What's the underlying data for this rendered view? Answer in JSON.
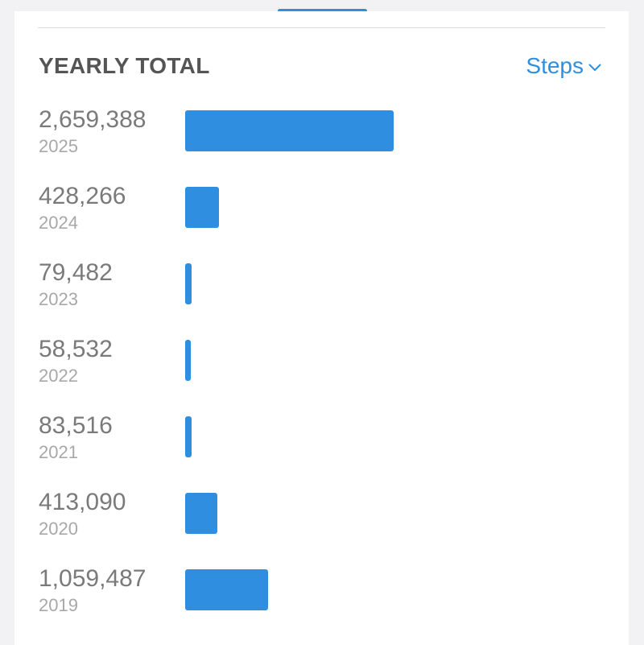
{
  "header": {
    "title": "YEARLY TOTAL",
    "metric_label": "Steps",
    "accent_color": "#2f8ee0"
  },
  "chart_data": {
    "type": "bar",
    "orientation": "horizontal",
    "title": "YEARLY TOTAL",
    "categories": [
      "2025",
      "2024",
      "2023",
      "2022",
      "2021",
      "2020",
      "2019"
    ],
    "values": [
      2659388,
      428266,
      79482,
      58532,
      83516,
      413090,
      1059487
    ],
    "labels": [
      "2,659,388",
      "428,266",
      "79,482",
      "58,532",
      "83,516",
      "413,090",
      "1,059,487"
    ]
  }
}
